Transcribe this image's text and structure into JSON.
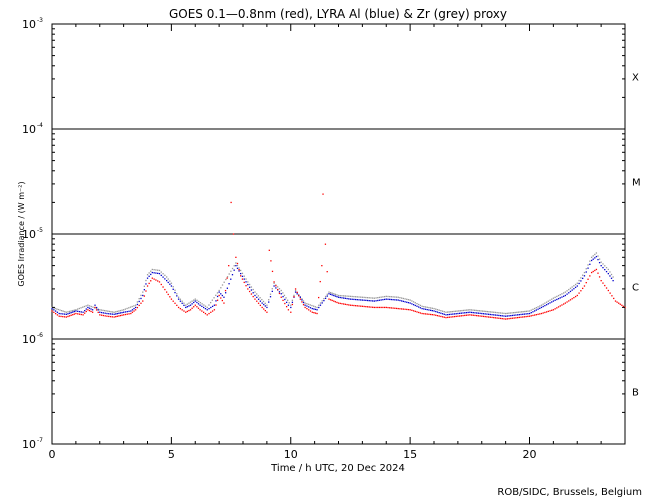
{
  "chart_data": {
    "type": "scatter",
    "title": "GOES 0.1—0.8nm (red), LYRA Al (blue) & Zr (grey) proxy",
    "xlabel": "Time / h UTC, 20 Dec 2024",
    "ylabel": "GOES Irradiance / (W m⁻²)",
    "xlim": [
      0,
      24
    ],
    "ylim": [
      1e-07,
      0.001
    ],
    "yscale": "log",
    "x_ticks": [
      0,
      5,
      10,
      15,
      20
    ],
    "x_tick_labels": [
      "0",
      "5",
      "10",
      "15",
      "20"
    ],
    "y_tick_mantissa": "10",
    "y_tick_exponents": [
      "-3",
      "-4",
      "-5",
      "-6",
      "-7"
    ],
    "flare_classes": [
      "X",
      "M",
      "C",
      "B"
    ],
    "class_lines": [
      0.0001,
      1e-05,
      1e-06
    ],
    "credit": "ROB/SIDC, Brussels, Belgium",
    "series": [
      {
        "color": "#ff0000",
        "points": [
          [
            0,
            1.85e-06
          ],
          [
            0.3,
            1.65e-06
          ],
          [
            0.6,
            1.62e-06
          ],
          [
            1.0,
            1.75e-06
          ],
          [
            1.3,
            1.7e-06
          ],
          [
            1.5,
            1.9e-06
          ],
          [
            1.7,
            1.8e-06
          ],
          [
            1.8,
            2e-06
          ],
          [
            2.0,
            1.7e-06
          ],
          [
            2.3,
            1.65e-06
          ],
          [
            2.6,
            1.62e-06
          ],
          [
            3.0,
            1.7e-06
          ],
          [
            3.3,
            1.75e-06
          ],
          [
            3.5,
            1.9e-06
          ],
          [
            3.8,
            2.3e-06
          ],
          [
            4.0,
            3.2e-06
          ],
          [
            4.2,
            3.8e-06
          ],
          [
            4.5,
            3.5e-06
          ],
          [
            4.8,
            2.8e-06
          ],
          [
            5.0,
            2.4e-06
          ],
          [
            5.3,
            2e-06
          ],
          [
            5.6,
            1.8e-06
          ],
          [
            5.8,
            1.9e-06
          ],
          [
            6.0,
            2.1e-06
          ],
          [
            6.2,
            1.9e-06
          ],
          [
            6.5,
            1.7e-06
          ],
          [
            6.8,
            1.9e-06
          ],
          [
            7.0,
            2.6e-06
          ],
          [
            7.2,
            2.2e-06
          ],
          [
            7.4,
            5e-06
          ],
          [
            7.5,
            2e-05
          ],
          [
            7.6,
            1e-05
          ],
          [
            7.7,
            6e-06
          ],
          [
            7.9,
            4e-06
          ],
          [
            8.2,
            3e-06
          ],
          [
            8.5,
            2.4e-06
          ],
          [
            8.8,
            2e-06
          ],
          [
            9.0,
            1.8e-06
          ],
          [
            9.1,
            7e-06
          ],
          [
            9.3,
            3.5e-06
          ],
          [
            9.6,
            2.5e-06
          ],
          [
            9.9,
            1.9e-06
          ],
          [
            10.0,
            1.8e-06
          ],
          [
            10.2,
            3e-06
          ],
          [
            10.4,
            2.4e-06
          ],
          [
            10.6,
            2e-06
          ],
          [
            10.9,
            1.8e-06
          ],
          [
            11.1,
            1.75e-06
          ],
          [
            11.3,
            5e-06
          ],
          [
            11.35,
            2.4e-05
          ],
          [
            11.45,
            8e-06
          ],
          [
            11.6,
            2.4e-06
          ],
          [
            12.0,
            2.2e-06
          ],
          [
            12.5,
            2.1e-06
          ],
          [
            13.0,
            2.05e-06
          ],
          [
            13.5,
            2e-06
          ],
          [
            14.0,
            2e-06
          ],
          [
            14.5,
            1.95e-06
          ],
          [
            15.0,
            1.9e-06
          ],
          [
            15.5,
            1.75e-06
          ],
          [
            16.0,
            1.7e-06
          ],
          [
            16.5,
            1.6e-06
          ],
          [
            17.0,
            1.65e-06
          ],
          [
            17.5,
            1.7e-06
          ],
          [
            18.0,
            1.65e-06
          ],
          [
            18.5,
            1.6e-06
          ],
          [
            19.0,
            1.55e-06
          ],
          [
            19.5,
            1.6e-06
          ],
          [
            20.0,
            1.65e-06
          ],
          [
            20.5,
            1.75e-06
          ],
          [
            21.0,
            1.9e-06
          ],
          [
            21.5,
            2.2e-06
          ],
          [
            22.0,
            2.6e-06
          ],
          [
            22.3,
            3.2e-06
          ],
          [
            22.6,
            4.3e-06
          ],
          [
            22.8,
            4.6e-06
          ],
          [
            23.0,
            3.6e-06
          ],
          [
            23.3,
            2.9e-06
          ],
          [
            23.6,
            2.3e-06
          ],
          [
            24.0,
            2e-06
          ]
        ]
      },
      {
        "color": "#0000cc",
        "points": [
          [
            0,
            1.95e-06
          ],
          [
            0.3,
            1.75e-06
          ],
          [
            0.6,
            1.72e-06
          ],
          [
            1.0,
            1.85e-06
          ],
          [
            1.3,
            1.8e-06
          ],
          [
            1.5,
            2e-06
          ],
          [
            1.7,
            1.9e-06
          ],
          [
            1.8,
            2.1e-06
          ],
          [
            2.0,
            1.8e-06
          ],
          [
            2.3,
            1.75e-06
          ],
          [
            2.6,
            1.72e-06
          ],
          [
            3.0,
            1.8e-06
          ],
          [
            3.3,
            1.85e-06
          ],
          [
            3.5,
            2e-06
          ],
          [
            3.8,
            2.6e-06
          ],
          [
            4.0,
            3.8e-06
          ],
          [
            4.2,
            4.3e-06
          ],
          [
            4.5,
            4.2e-06
          ],
          [
            4.8,
            3.6e-06
          ],
          [
            5.0,
            3.2e-06
          ],
          [
            5.3,
            2.4e-06
          ],
          [
            5.6,
            2e-06
          ],
          [
            5.8,
            2.1e-06
          ],
          [
            6.0,
            2.3e-06
          ],
          [
            6.2,
            2.1e-06
          ],
          [
            6.5,
            1.9e-06
          ],
          [
            6.8,
            2.1e-06
          ],
          [
            7.0,
            2.8e-06
          ],
          [
            7.2,
            2.5e-06
          ],
          [
            7.7,
            5e-06
          ],
          [
            7.9,
            4.2e-06
          ],
          [
            8.2,
            3.3e-06
          ],
          [
            8.5,
            2.6e-06
          ],
          [
            8.8,
            2.2e-06
          ],
          [
            9.0,
            2e-06
          ],
          [
            9.3,
            3.2e-06
          ],
          [
            9.6,
            2.7e-06
          ],
          [
            9.9,
            2.1e-06
          ],
          [
            10.0,
            2e-06
          ],
          [
            10.2,
            2.8e-06
          ],
          [
            10.4,
            2.5e-06
          ],
          [
            10.6,
            2.1e-06
          ],
          [
            10.9,
            1.95e-06
          ],
          [
            11.1,
            1.9e-06
          ],
          [
            11.6,
            2.7e-06
          ],
          [
            12.0,
            2.5e-06
          ],
          [
            12.5,
            2.4e-06
          ],
          [
            13.0,
            2.35e-06
          ],
          [
            13.5,
            2.3e-06
          ],
          [
            14.0,
            2.4e-06
          ],
          [
            14.5,
            2.35e-06
          ],
          [
            15.0,
            2.2e-06
          ],
          [
            15.5,
            1.95e-06
          ],
          [
            16.0,
            1.85e-06
          ],
          [
            16.5,
            1.7e-06
          ],
          [
            17.0,
            1.75e-06
          ],
          [
            17.5,
            1.8e-06
          ],
          [
            18.0,
            1.75e-06
          ],
          [
            18.5,
            1.7e-06
          ],
          [
            19.0,
            1.65e-06
          ],
          [
            19.5,
            1.7e-06
          ],
          [
            20.0,
            1.75e-06
          ],
          [
            20.5,
            2e-06
          ],
          [
            21.0,
            2.3e-06
          ],
          [
            21.5,
            2.6e-06
          ],
          [
            22.0,
            3.2e-06
          ],
          [
            22.3,
            4e-06
          ],
          [
            22.6,
            5.6e-06
          ],
          [
            22.8,
            6.1e-06
          ],
          [
            23.0,
            5e-06
          ],
          [
            23.3,
            4.2e-06
          ],
          [
            23.5,
            3.6e-06
          ]
        ]
      },
      {
        "color": "#999999",
        "points": [
          [
            0,
            2e-06
          ],
          [
            0.6,
            1.8e-06
          ],
          [
            1.0,
            1.9e-06
          ],
          [
            1.5,
            2.1e-06
          ],
          [
            2.0,
            1.9e-06
          ],
          [
            2.6,
            1.8e-06
          ],
          [
            3.0,
            1.9e-06
          ],
          [
            3.5,
            2.1e-06
          ],
          [
            3.8,
            2.8e-06
          ],
          [
            4.0,
            4.1e-06
          ],
          [
            4.2,
            4.6e-06
          ],
          [
            4.5,
            4.5e-06
          ],
          [
            4.8,
            3.9e-06
          ],
          [
            5.0,
            3.4e-06
          ],
          [
            5.3,
            2.5e-06
          ],
          [
            5.6,
            2.1e-06
          ],
          [
            6.0,
            2.4e-06
          ],
          [
            6.5,
            2e-06
          ],
          [
            7.0,
            2.9e-06
          ],
          [
            7.7,
            5.3e-06
          ],
          [
            7.9,
            4.5e-06
          ],
          [
            8.2,
            3.5e-06
          ],
          [
            8.5,
            2.8e-06
          ],
          [
            9.0,
            2.1e-06
          ],
          [
            9.3,
            3.4e-06
          ],
          [
            9.6,
            2.9e-06
          ],
          [
            10.0,
            2.1e-06
          ],
          [
            10.2,
            2.9e-06
          ],
          [
            10.6,
            2.2e-06
          ],
          [
            11.1,
            2e-06
          ],
          [
            11.6,
            2.8e-06
          ],
          [
            12.0,
            2.6e-06
          ],
          [
            12.5,
            2.55e-06
          ],
          [
            13.0,
            2.5e-06
          ],
          [
            13.5,
            2.45e-06
          ],
          [
            14.0,
            2.55e-06
          ],
          [
            14.5,
            2.5e-06
          ],
          [
            15.0,
            2.35e-06
          ],
          [
            15.5,
            2.05e-06
          ],
          [
            16.0,
            1.95e-06
          ],
          [
            16.5,
            1.8e-06
          ],
          [
            17.5,
            1.9e-06
          ],
          [
            18.5,
            1.8e-06
          ],
          [
            19.0,
            1.75e-06
          ],
          [
            20.0,
            1.85e-06
          ],
          [
            20.5,
            2.1e-06
          ],
          [
            21.0,
            2.45e-06
          ],
          [
            21.5,
            2.8e-06
          ],
          [
            22.0,
            3.4e-06
          ],
          [
            22.3,
            4.3e-06
          ],
          [
            22.6,
            6e-06
          ],
          [
            22.8,
            6.6e-06
          ],
          [
            23.0,
            5.4e-06
          ],
          [
            23.3,
            4.6e-06
          ],
          [
            23.5,
            3.9e-06
          ]
        ]
      }
    ]
  }
}
